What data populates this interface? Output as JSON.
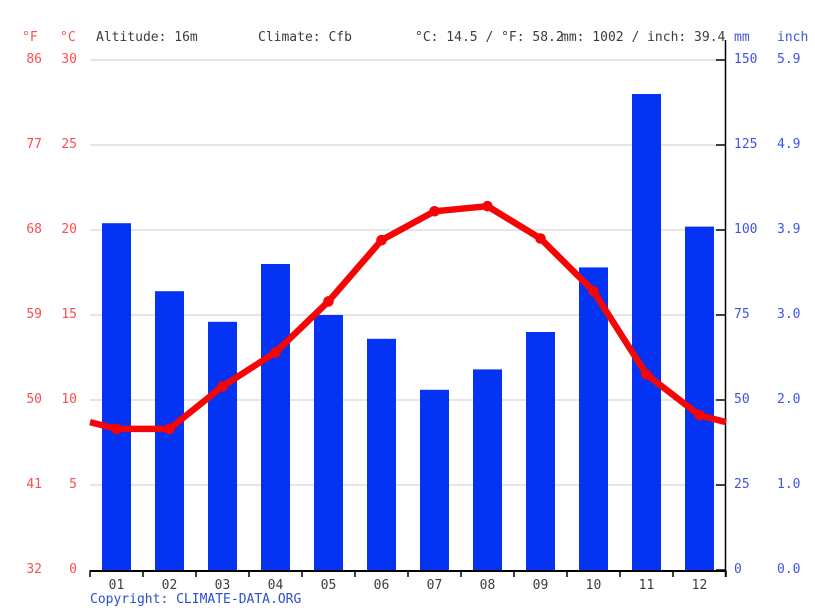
{
  "header": {
    "fahrenheit_label": "°F",
    "celsius_label": "°C",
    "altitude": "Altitude: 16m",
    "climate": "Climate: Cfb",
    "avg_temp": "°C: 14.5 / °F: 58.2",
    "avg_precip": "mm: 1002 / inch: 39.4",
    "mm_label": "mm",
    "inch_label": "inch"
  },
  "left_axis": {
    "fahrenheit_ticks": [
      "86",
      "77",
      "68",
      "59",
      "50",
      "41",
      "32"
    ],
    "celsius_ticks": [
      "30",
      "25",
      "20",
      "15",
      "10",
      "5",
      "0"
    ]
  },
  "right_axis": {
    "mm_ticks": [
      "150",
      "125",
      "100",
      "75",
      "50",
      "25",
      "0"
    ],
    "inch_ticks": [
      "5.9",
      "4.9",
      "3.9",
      "3.0",
      "2.0",
      "1.0",
      "0.0"
    ]
  },
  "chart_data": {
    "type": "bar",
    "subtype": "climate-combo-bar-and-line",
    "title": "",
    "categories": [
      "01",
      "02",
      "03",
      "04",
      "05",
      "06",
      "07",
      "08",
      "09",
      "10",
      "11",
      "12"
    ],
    "series": [
      {
        "name": "Precipitation",
        "type": "bar",
        "unit": "mm",
        "values": [
          102,
          82,
          73,
          90,
          75,
          68,
          53,
          59,
          70,
          89,
          140,
          101
        ]
      },
      {
        "name": "Temperature",
        "type": "line",
        "unit": "°C",
        "values": [
          8.3,
          8.3,
          10.8,
          12.8,
          15.8,
          19.4,
          21.1,
          21.4,
          19.5,
          16.4,
          11.5,
          9.1
        ]
      }
    ],
    "temp_axis": {
      "unit": "°C",
      "min": 0,
      "max": 30,
      "ticks": [
        30,
        25,
        20,
        15,
        10,
        5,
        0
      ]
    },
    "temp_axis_secondary": {
      "unit": "°F",
      "ticks": [
        86,
        77,
        68,
        59,
        50,
        41,
        32
      ]
    },
    "precip_axis": {
      "unit": "mm",
      "min": 0,
      "max": 150,
      "ticks": [
        150,
        125,
        100,
        75,
        50,
        25,
        0
      ]
    },
    "precip_axis_secondary": {
      "unit": "inch",
      "ticks": [
        5.9,
        4.9,
        3.9,
        3.0,
        2.0,
        1.0,
        0.0
      ]
    },
    "grid": true,
    "legend": "none"
  },
  "colors": {
    "bar": "#0433f4",
    "line": "#f50505",
    "left_axis_text": "#ff4d4d",
    "right_axis_text": "#3f55e0",
    "header_text": "#3c3c3c",
    "month_text": "#3c3c3c",
    "gridline": "#cccccc",
    "axis_line": "#000000",
    "copyright_text": "#2b4ed0",
    "background": "#ffffff"
  },
  "footer": {
    "copyright": "Copyright: CLIMATE-DATA.ORG"
  }
}
